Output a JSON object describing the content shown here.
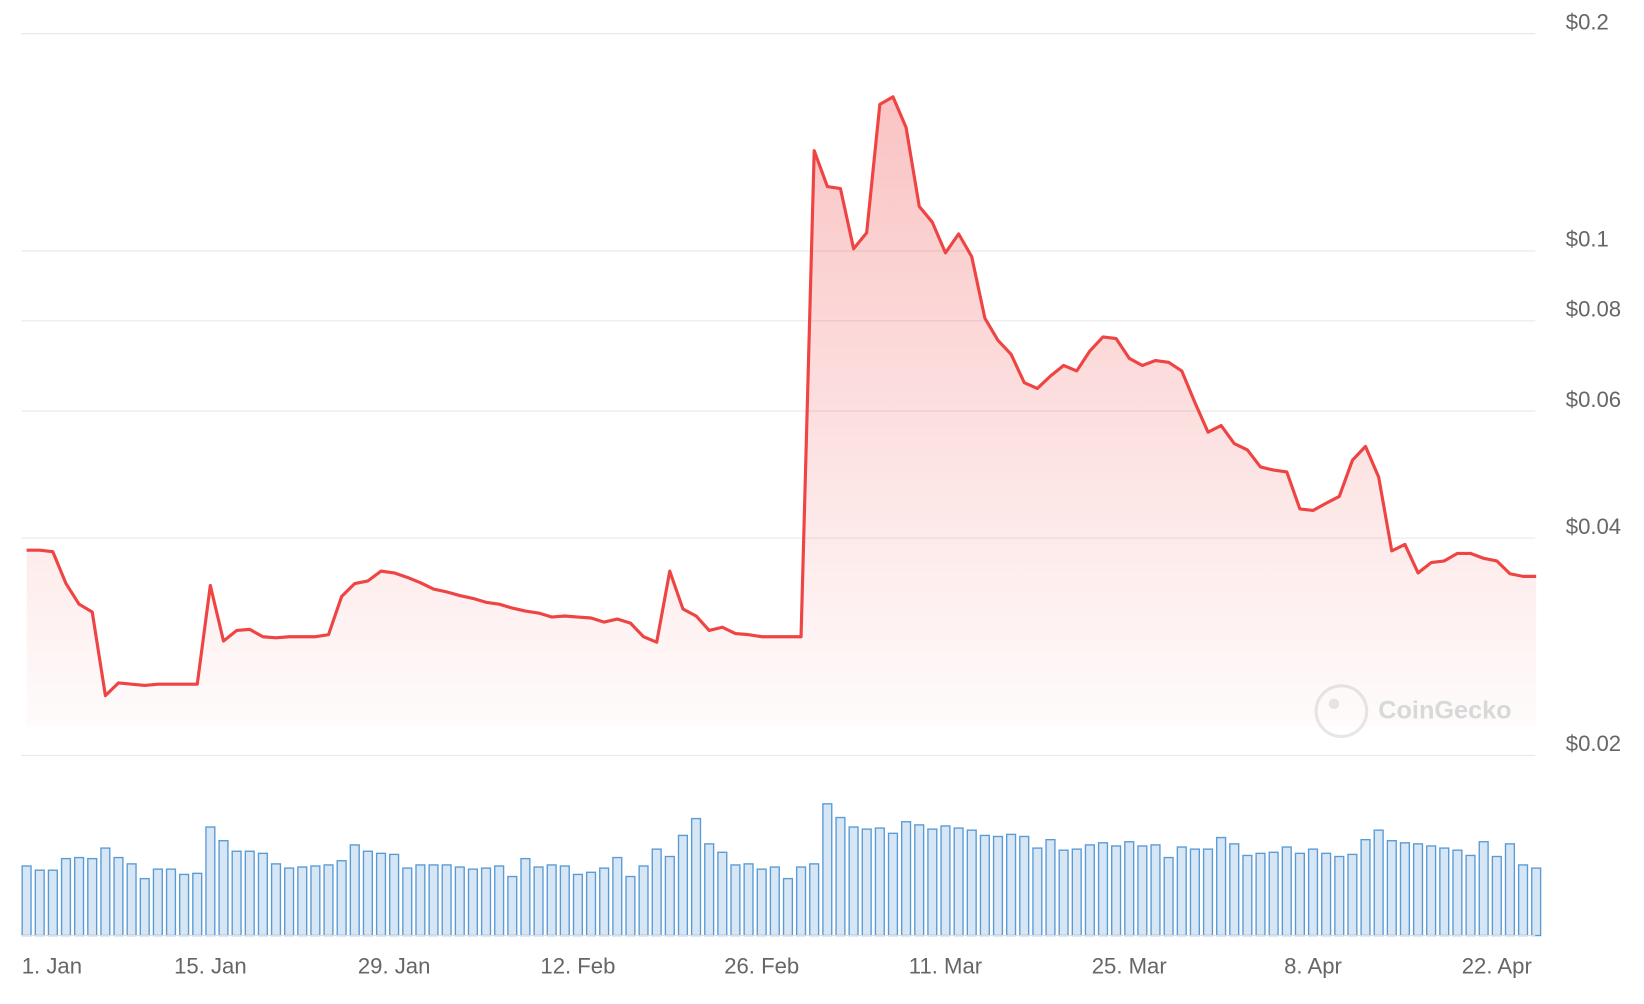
{
  "chart_data": {
    "type": "line",
    "watermark": "CoinGecko",
    "log_scale": true,
    "grid": true,
    "color": "#ef4444",
    "categories": [
      "1. Jan",
      null,
      null,
      null,
      null,
      null,
      null,
      null,
      null,
      null,
      null,
      null,
      null,
      null,
      "15. Jan",
      null,
      null,
      null,
      null,
      null,
      null,
      null,
      null,
      null,
      null,
      null,
      null,
      null,
      "29. Jan",
      null,
      null,
      null,
      null,
      null,
      null,
      null,
      null,
      null,
      null,
      null,
      null,
      null,
      "12. Feb",
      null,
      null,
      null,
      null,
      null,
      null,
      null,
      null,
      null,
      null,
      null,
      null,
      null,
      "26. Feb",
      null,
      null,
      null,
      null,
      null,
      null,
      null,
      null,
      null,
      null,
      null,
      null,
      null,
      "11. Mar",
      null,
      null,
      null,
      null,
      null,
      null,
      null,
      null,
      null,
      null,
      null,
      null,
      null,
      "25. Mar",
      null,
      null,
      null,
      null,
      null,
      null,
      null,
      null,
      null,
      null,
      null,
      null,
      null,
      "8. Apr",
      null,
      null,
      null,
      null,
      null,
      null,
      null,
      null,
      null,
      null,
      null,
      null,
      null,
      "22. Apr",
      null,
      null,
      null
    ],
    "values": [
      0.0385,
      0.0385,
      0.0383,
      0.0346,
      0.0324,
      0.0316,
      0.0242,
      0.0252,
      0.0251,
      0.025,
      0.0251,
      0.0251,
      0.0251,
      0.0251,
      0.0344,
      0.0288,
      0.0298,
      0.0299,
      0.0292,
      0.0291,
      0.0292,
      0.0292,
      0.0292,
      0.0294,
      0.0332,
      0.0346,
      0.0349,
      0.036,
      0.0358,
      0.0353,
      0.0347,
      0.034,
      0.0337,
      0.0333,
      0.033,
      0.0326,
      0.0324,
      0.032,
      0.0317,
      0.0315,
      0.0311,
      0.0312,
      0.0311,
      0.031,
      0.0306,
      0.0309,
      0.0305,
      0.0292,
      0.0287,
      0.036,
      0.0319,
      0.0312,
      0.0298,
      0.0301,
      0.0295,
      0.0294,
      0.0292,
      0.0292,
      0.0292,
      0.0292,
      0.1377,
      0.1228,
      0.122,
      0.1007,
      0.106,
      0.1596,
      0.1635,
      0.1483,
      0.1153,
      0.1096,
      0.0994,
      0.1056,
      0.0982,
      0.0807,
      0.0752,
      0.0719,
      0.0657,
      0.0645,
      0.0671,
      0.0694,
      0.0682,
      0.0727,
      0.076,
      0.0756,
      0.071,
      0.0694,
      0.0705,
      0.0701,
      0.0682,
      0.0617,
      0.0561,
      0.0573,
      0.0541,
      0.053,
      0.0502,
      0.0497,
      0.0494,
      0.0439,
      0.0437,
      0.0447,
      0.0457,
      0.0513,
      0.0536,
      0.0486,
      0.0384,
      0.0392,
      0.0358,
      0.037,
      0.0372,
      0.0381,
      0.0381,
      0.0375,
      0.0372,
      0.0357,
      0.0354,
      0.0354
    ],
    "ylim": [
      0.02,
      0.2
    ],
    "yticks": [
      {
        "value": 0.02,
        "label": "$0.02"
      },
      {
        "value": 0.04,
        "label": "$0.04"
      },
      {
        "value": 0.06,
        "label": "$0.06"
      },
      {
        "value": 0.08,
        "label": "$0.08"
      },
      {
        "value": 0.1,
        "label": "$0.1"
      },
      {
        "value": 0.2,
        "label": "$0.2"
      }
    ],
    "volume": {
      "color": "#5b9bd5",
      "ylim": [
        0,
        130
      ],
      "values": [
        66,
        62,
        62,
        73,
        74,
        73,
        83,
        74,
        68,
        54,
        63,
        63,
        58,
        59,
        103,
        90,
        80,
        80,
        78,
        68,
        64,
        65,
        66,
        67,
        71,
        86,
        80,
        78,
        77,
        64,
        67,
        67,
        67,
        65,
        63,
        64,
        66,
        56,
        73,
        65,
        67,
        66,
        58,
        60,
        64,
        74,
        56,
        66,
        82,
        75,
        95,
        111,
        87,
        79,
        67,
        68,
        63,
        65,
        54,
        65,
        68,
        125,
        112,
        103,
        101,
        102,
        97,
        108,
        105,
        101,
        104,
        102,
        100,
        95,
        94,
        96,
        94,
        83,
        91,
        81,
        82,
        86,
        88,
        85,
        89,
        85,
        86,
        74,
        84,
        82,
        82,
        93,
        87,
        76,
        78,
        79,
        84,
        78,
        82,
        78,
        75,
        77,
        91,
        100,
        90,
        88,
        87,
        85,
        83,
        81,
        76,
        89,
        75,
        87,
        67,
        64
      ]
    }
  }
}
